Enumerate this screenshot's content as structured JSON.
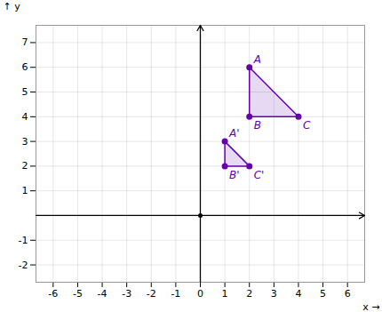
{
  "chart_data": {
    "type": "polygon",
    "xlabel": "x",
    "ylabel": "y",
    "xlim": [
      -6.7,
      6.7
    ],
    "ylim": [
      -2.7,
      7.7
    ],
    "xticks": [
      -6,
      -5,
      -4,
      -3,
      -2,
      -1,
      0,
      1,
      2,
      3,
      4,
      5,
      6
    ],
    "yticks": [
      -2,
      -1,
      1,
      2,
      3,
      4,
      5,
      6,
      7
    ],
    "grid": true,
    "series": [
      {
        "color": "#6600aa",
        "x": [
          2,
          2,
          4
        ],
        "y": [
          6,
          4,
          4
        ],
        "labels": [
          "A",
          "B",
          "C"
        ]
      },
      {
        "color": "#6600aa",
        "x": [
          1,
          1,
          2
        ],
        "y": [
          3,
          2,
          2
        ],
        "labels": [
          "A'",
          "B'",
          "C'"
        ]
      }
    ]
  }
}
